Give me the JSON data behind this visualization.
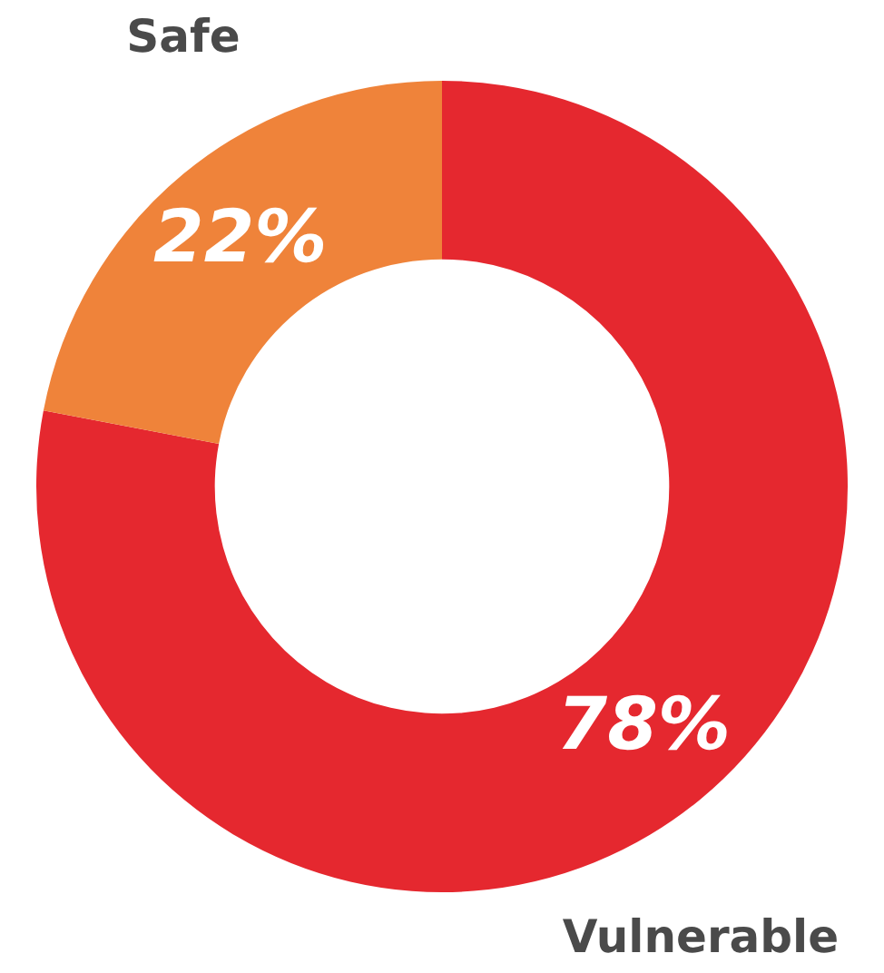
{
  "chart_data": {
    "type": "donut",
    "categories": [
      "Vulnerable",
      "Safe"
    ],
    "values": [
      78,
      22
    ],
    "colors": [
      "#e5282f",
      "#ef833a"
    ],
    "value_labels": [
      "78%",
      "22%"
    ]
  }
}
